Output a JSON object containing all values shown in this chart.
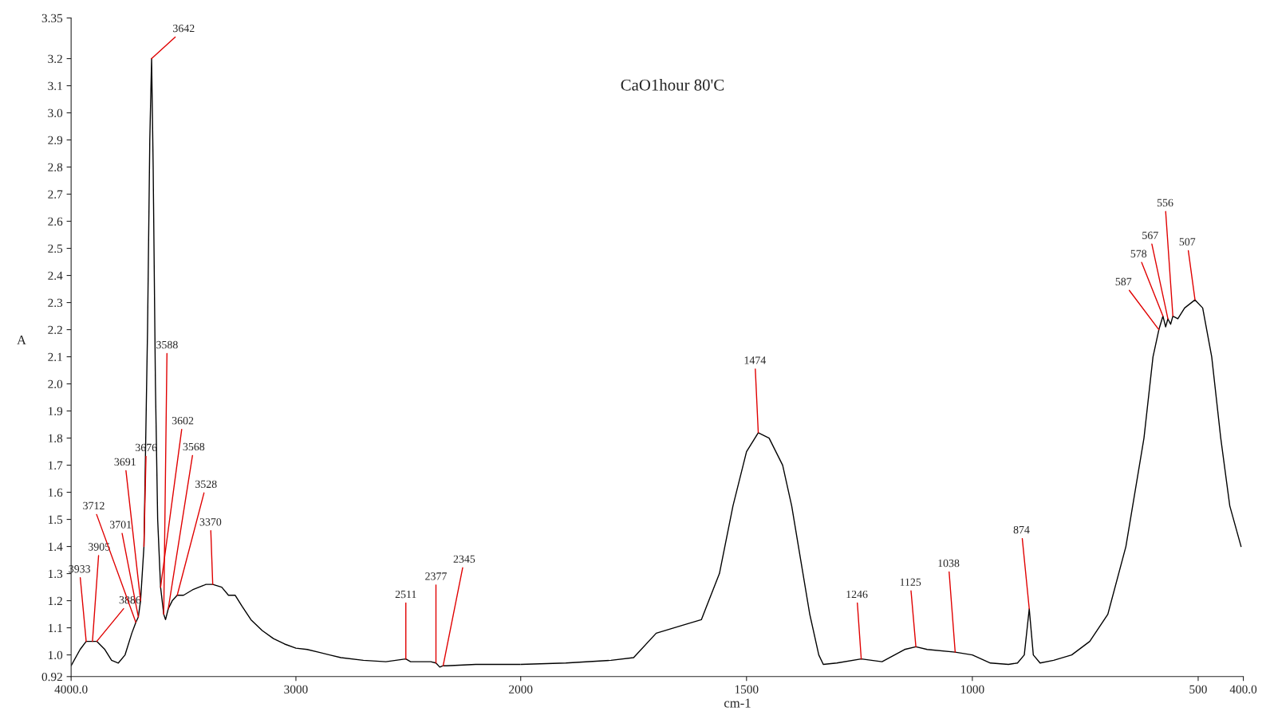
{
  "chart_data": [
    {
      "type": "line",
      "ylabel": "A",
      "x": [
        4000,
        3960,
        3933,
        3905,
        3886,
        3850,
        3820,
        3790,
        3760,
        3730,
        3712,
        3701,
        3691,
        3676,
        3660,
        3650,
        3642,
        3635,
        3625,
        3615,
        3602,
        3588,
        3580,
        3568,
        3550,
        3528,
        3500,
        3460,
        3400,
        3370,
        3330,
        3300,
        3270,
        3240,
        3200,
        3150,
        3100,
        3050,
        3000,
        2950,
        2900,
        2850,
        2800,
        2700,
        2600,
        2511,
        2490,
        2400,
        2377,
        2360,
        2345,
        2330,
        2200,
        2000
      ],
      "series": [
        {
          "color": "#000000",
          "values": [
            0.96,
            1.02,
            1.05,
            1.05,
            1.05,
            1.02,
            0.98,
            0.97,
            1.0,
            1.08,
            1.12,
            1.14,
            1.2,
            1.4,
            2.2,
            2.9,
            3.2,
            2.8,
            2.0,
            1.5,
            1.25,
            1.15,
            1.13,
            1.17,
            1.2,
            1.22,
            1.22,
            1.24,
            1.26,
            1.26,
            1.25,
            1.22,
            1.22,
            1.18,
            1.13,
            1.09,
            1.06,
            1.04,
            1.025,
            1.02,
            1.01,
            1.0,
            0.99,
            0.98,
            0.975,
            0.985,
            0.975,
            0.975,
            0.97,
            0.955,
            0.96,
            0.96,
            0.965,
            0.965
          ]
        }
      ],
      "xlim": [
        4000,
        2000
      ],
      "xticks": [
        {
          "value": 4000,
          "label": "4000.0"
        },
        3000,
        2000
      ],
      "ylim": [
        0.92,
        3.35
      ],
      "yticks": [
        0.92,
        {
          "value": 1.0,
          "label": "1.0"
        },
        1.1,
        1.2,
        1.3,
        1.4,
        1.5,
        1.6,
        1.7,
        1.8,
        1.9,
        {
          "value": 2.0,
          "label": "2.0"
        },
        2.1,
        2.2,
        2.3,
        2.4,
        2.5,
        2.6,
        2.7,
        2.8,
        2.9,
        {
          "value": 3.0,
          "label": "3.0"
        },
        3.1,
        3.2,
        3.35
      ],
      "grid": false,
      "marker": "none",
      "line_style": "solid",
      "annotations": [
        {
          "text": "3933",
          "x": 3933,
          "y": 1.05
        },
        {
          "text": "3905",
          "x": 3905,
          "y": 1.05
        },
        {
          "text": "3886",
          "x": 3886,
          "y": 1.05
        },
        {
          "text": "3712",
          "x": 3712,
          "y": 1.12
        },
        {
          "text": "3701",
          "x": 3701,
          "y": 1.14
        },
        {
          "text": "3691",
          "x": 3691,
          "y": 1.2
        },
        {
          "text": "3676",
          "x": 3676,
          "y": 1.4
        },
        {
          "text": "3642",
          "x": 3642,
          "y": 3.2
        },
        {
          "text": "3602",
          "x": 3602,
          "y": 1.25
        },
        {
          "text": "3588",
          "x": 3588,
          "y": 1.15
        },
        {
          "text": "3568",
          "x": 3568,
          "y": 1.17
        },
        {
          "text": "3528",
          "x": 3528,
          "y": 1.22
        },
        {
          "text": "3370",
          "x": 3370,
          "y": 1.26
        },
        {
          "text": "2511",
          "x": 2511,
          "y": 0.985
        },
        {
          "text": "2377",
          "x": 2377,
          "y": 0.97
        },
        {
          "text": "2345",
          "x": 2345,
          "y": 0.96
        }
      ]
    },
    {
      "type": "line",
      "xlabel": "cm-1",
      "tick_labels": "x",
      "x": [
        2000,
        1900,
        1800,
        1750,
        1700,
        1640,
        1600,
        1560,
        1530,
        1500,
        1474,
        1450,
        1420,
        1400,
        1380,
        1360,
        1340,
        1330,
        1300,
        1246,
        1200,
        1150,
        1125,
        1100,
        1038,
        1000,
        960,
        920,
        900,
        885,
        874,
        865,
        850,
        820,
        780,
        740,
        700,
        660,
        620,
        600,
        587,
        578,
        572,
        567,
        561,
        556,
        545,
        530,
        507,
        490,
        470,
        450,
        430,
        405
      ],
      "series": [
        {
          "color": "#000000",
          "values": [
            0.965,
            0.97,
            0.98,
            0.99,
            1.08,
            1.11,
            1.13,
            1.3,
            1.55,
            1.75,
            1.82,
            1.8,
            1.7,
            1.55,
            1.35,
            1.15,
            1.0,
            0.965,
            0.97,
            0.985,
            0.975,
            1.02,
            1.03,
            1.02,
            1.01,
            1.0,
            0.97,
            0.965,
            0.97,
            1.0,
            1.17,
            1.0,
            0.97,
            0.98,
            1.0,
            1.05,
            1.15,
            1.4,
            1.8,
            2.1,
            2.2,
            2.25,
            2.21,
            2.24,
            2.22,
            2.25,
            2.24,
            2.28,
            2.31,
            2.28,
            2.1,
            1.8,
            1.55,
            1.4
          ]
        }
      ],
      "xlim": [
        2000,
        400
      ],
      "xticks": [
        1500,
        1000,
        500,
        {
          "value": 400,
          "label": "400.0"
        }
      ],
      "ylim": [
        0.92,
        3.35
      ],
      "grid": false,
      "marker": "none",
      "line_style": "solid",
      "annotations": [
        "CaO1hour 80'C",
        {
          "text": "1474",
          "x": 1474,
          "y": 1.82
        },
        {
          "text": "1246",
          "x": 1246,
          "y": 0.985
        },
        {
          "text": "1125",
          "x": 1125,
          "y": 1.03
        },
        {
          "text": "1038",
          "x": 1038,
          "y": 1.01
        },
        {
          "text": "874",
          "x": 874,
          "y": 1.17
        },
        {
          "text": "587",
          "x": 587,
          "y": 2.2
        },
        {
          "text": "578",
          "x": 578,
          "y": 2.25
        },
        {
          "text": "567",
          "x": 567,
          "y": 2.24
        },
        {
          "text": "556",
          "x": 556,
          "y": 2.25
        },
        {
          "text": "507",
          "x": 507,
          "y": 2.31
        }
      ]
    }
  ]
}
